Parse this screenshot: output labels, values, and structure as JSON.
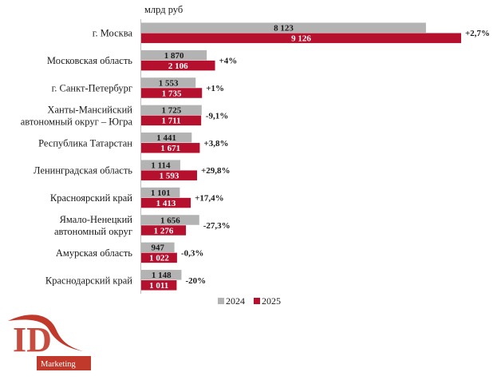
{
  "chart_data": {
    "type": "bar",
    "orientation": "horizontal",
    "unit_label": "млрд руб",
    "categories": [
      [
        "г. Москва"
      ],
      [
        "Московская область"
      ],
      [
        "г. Санкт-Петербург"
      ],
      [
        "Ханты-Мансийский",
        "автономный округ – Югра"
      ],
      [
        "Республика Татарстан"
      ],
      [
        "Ленинградская область"
      ],
      [
        "Красноярский край"
      ],
      [
        "Ямало-Ненецкий",
        "автономный округ"
      ],
      [
        "Амурская область"
      ],
      [
        "Краснодарский край"
      ]
    ],
    "series": [
      {
        "name": "2024",
        "color": "#b3b3b3",
        "values": [
          8123,
          1870,
          1553,
          1725,
          1441,
          1114,
          1101,
          1656,
          947,
          1148
        ],
        "labels": [
          "8 123",
          "1 870",
          "1 553",
          "1 725",
          "1 441",
          "1 114",
          "1 101",
          "1 656",
          "947",
          "1 148"
        ]
      },
      {
        "name": "2025",
        "color": "#b5112e",
        "values": [
          9126,
          2106,
          1735,
          1711,
          1671,
          1593,
          1413,
          1276,
          1022,
          1011
        ],
        "labels": [
          "9 126",
          "2 106",
          "1 735",
          "1 711",
          "1 671",
          "1 593",
          "1 413",
          "1 276",
          "1 022",
          "1 011"
        ]
      }
    ],
    "changes": [
      "+2,7%",
      "+4%",
      "+1%",
      "-9,1%",
      "+3,8%",
      "+29,8%",
      "+17,4%",
      "-27,3%",
      "-0,3%",
      "-20%"
    ],
    "xlim": [
      0,
      9126
    ],
    "grid": false,
    "legend_position": "bottom"
  },
  "logo": {
    "mark": "ID",
    "text": "Marketing",
    "color": "#c0392b"
  }
}
